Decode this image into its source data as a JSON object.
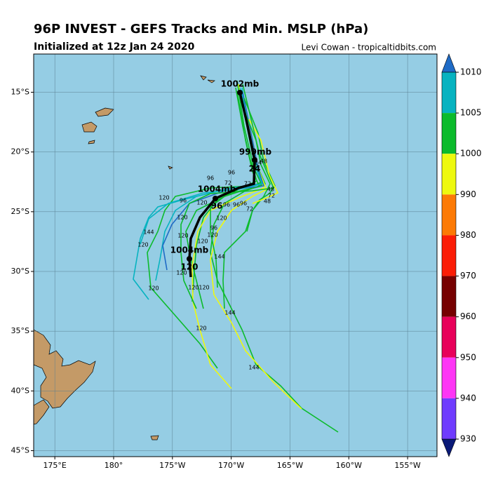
{
  "header": {
    "title": "96P INVEST - GEFS Tracks and Min. MSLP (hPa)",
    "subtitle": "Initialized at 12z Jan 24 2020",
    "credit": "Levi Cowan - tropicaltidbits.com"
  },
  "map": {
    "lonlim": [
      173.2,
      207.5
    ],
    "latlim": [
      -45.5,
      -11.8
    ],
    "background": "#95cde4",
    "lat_ticks": [
      {
        "value": -15,
        "label": "15°S"
      },
      {
        "value": -20,
        "label": "20°S"
      },
      {
        "value": -25,
        "label": "25°S"
      },
      {
        "value": -30,
        "label": "30°S"
      },
      {
        "value": -35,
        "label": "35°S"
      },
      {
        "value": -40,
        "label": "40°S"
      },
      {
        "value": -45,
        "label": "45°S"
      }
    ],
    "lon_ticks": [
      {
        "value": 175,
        "label": "175°E"
      },
      {
        "value": 180,
        "label": "180°"
      },
      {
        "value": 185,
        "label": "175°W"
      },
      {
        "value": 190,
        "label": "170°W"
      },
      {
        "value": 195,
        "label": "165°W"
      },
      {
        "value": 200,
        "label": "160°W"
      },
      {
        "value": 205,
        "label": "155°W"
      }
    ],
    "grid": true,
    "mean_labels": [
      "1002mb",
      "999mb",
      "24",
      "1004mb",
      "96",
      "1004mb",
      "120"
    ],
    "hour_labels": [
      "120",
      "96",
      "96",
      "72",
      "120",
      "96",
      "120",
      "144",
      "120",
      "120",
      "120",
      "96",
      "120",
      "120",
      "144",
      "120",
      "120",
      "120",
      "120",
      "144",
      "120",
      "144",
      "72",
      "48",
      "48",
      "96",
      "96",
      "96",
      "72",
      "72",
      "24",
      "48"
    ]
  },
  "colorbar": {
    "ticks": [
      1010,
      1005,
      1000,
      990,
      980,
      970,
      960,
      950,
      940,
      930
    ],
    "colors": [
      "#07b3c0",
      "#0cbb2c",
      "#eef90f",
      "#fc7a05",
      "#fb1d06",
      "#760000",
      "#e8005a",
      "#fd36f5",
      "#6f3cfe"
    ],
    "extend_colors": [
      "#1f6bc6",
      "#0a1a78"
    ]
  }
}
